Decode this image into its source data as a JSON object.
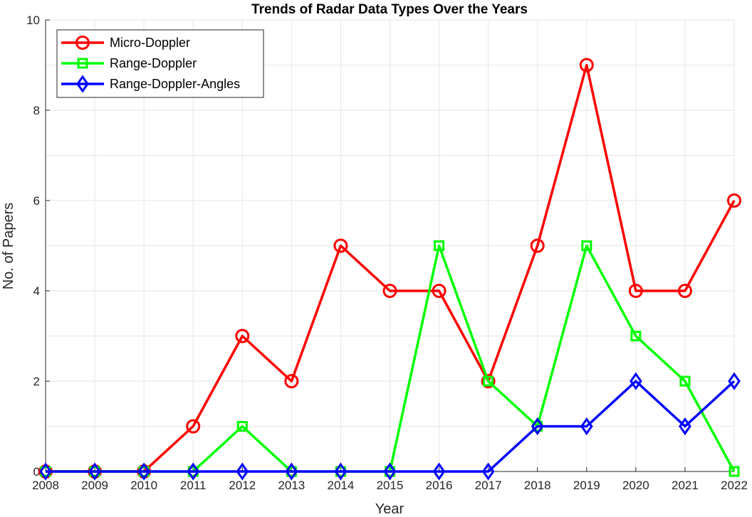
{
  "chart_data": {
    "type": "line",
    "title": "Trends of Radar Data Types Over the Years",
    "xlabel": "Year",
    "ylabel": "No. of Papers",
    "x": [
      2008,
      2009,
      2010,
      2011,
      2012,
      2013,
      2014,
      2015,
      2016,
      2017,
      2018,
      2019,
      2020,
      2021,
      2022
    ],
    "xlim": [
      2008,
      2022
    ],
    "ylim": [
      0,
      10
    ],
    "yticks": [
      0,
      2,
      4,
      6,
      8,
      10
    ],
    "grid": true,
    "legend_position": "top-left",
    "series": [
      {
        "name": "Micro-Doppler",
        "color": "#ff0000",
        "marker": "circle",
        "values": [
          0,
          0,
          0,
          1,
          3,
          2,
          5,
          4,
          4,
          2,
          5,
          9,
          4,
          4,
          6
        ]
      },
      {
        "name": "Range-Doppler",
        "color": "#00ff00",
        "marker": "square",
        "values": [
          0,
          0,
          0,
          0,
          1,
          0,
          0,
          0,
          5,
          2,
          1,
          5,
          3,
          2,
          0
        ]
      },
      {
        "name": "Range-Doppler-Angles",
        "color": "#0000ff",
        "marker": "diamond",
        "values": [
          0,
          0,
          0,
          0,
          0,
          0,
          0,
          0,
          0,
          0,
          1,
          1,
          2,
          1,
          2
        ]
      }
    ]
  }
}
